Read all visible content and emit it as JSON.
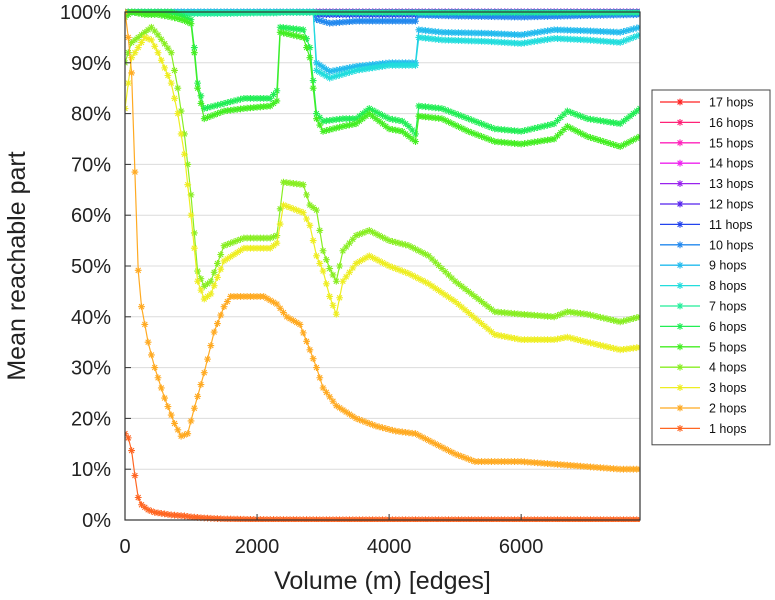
{
  "chart_data": {
    "type": "line",
    "title": "",
    "xlabel": "Volume (m) [edges]",
    "ylabel": "Mean reachable part",
    "xlim": [
      0,
      7800
    ],
    "ylim": [
      0,
      100
    ],
    "x_ticks": [
      0,
      2000,
      4000,
      6000
    ],
    "x_tick_labels": [
      "0",
      "2000",
      "4000",
      "6000"
    ],
    "y_ticks": [
      0,
      10,
      20,
      30,
      40,
      50,
      60,
      70,
      80,
      90,
      100
    ],
    "y_tick_labels": [
      "0%",
      "10%",
      "20%",
      "30%",
      "40%",
      "50%",
      "60%",
      "70%",
      "80%",
      "90%",
      "100%"
    ],
    "grid": "horizontal",
    "legend_position": "right",
    "series": [
      {
        "name": "17 hops",
        "color": "#ff2222",
        "x": [
          0,
          2000,
          4000,
          7800
        ],
        "values": [
          100,
          100,
          100,
          100
        ]
      },
      {
        "name": "16 hops",
        "color": "#ff2277",
        "x": [
          0,
          2000,
          4000,
          7800
        ],
        "values": [
          100,
          100,
          100,
          100
        ]
      },
      {
        "name": "15 hops",
        "color": "#ff22bb",
        "x": [
          0,
          2000,
          4000,
          7800
        ],
        "values": [
          100,
          100,
          100,
          100
        ]
      },
      {
        "name": "14 hops",
        "color": "#ee22ee",
        "x": [
          0,
          2000,
          4000,
          7800
        ],
        "values": [
          100,
          100,
          100,
          100
        ]
      },
      {
        "name": "13 hops",
        "color": "#9922ee",
        "x": [
          0,
          2850,
          2900,
          4400,
          5000,
          6000,
          7000,
          7800
        ],
        "values": [
          100,
          100,
          100,
          100,
          100,
          100,
          100,
          100
        ]
      },
      {
        "name": "12 hops",
        "color": "#5522ee",
        "x": [
          0,
          2850,
          2900,
          4400,
          5000,
          6000,
          7000,
          7800
        ],
        "values": [
          100,
          100,
          100,
          100,
          100,
          100,
          100,
          100
        ]
      },
      {
        "name": "11 hops",
        "color": "#2244ee",
        "x": [
          0,
          2850,
          2900,
          4400,
          5000,
          6000,
          7000,
          7800
        ],
        "values": [
          100,
          100,
          99.5,
          99.5,
          99.8,
          99.8,
          99.8,
          99.8
        ]
      },
      {
        "name": "10 hops",
        "color": "#2288ee",
        "x": [
          0,
          2850,
          2900,
          3100,
          3500,
          4400,
          4450,
          5000,
          6000,
          7000,
          7800
        ],
        "values": [
          100,
          100,
          98.5,
          97.8,
          98.2,
          98.2,
          99.4,
          99.2,
          99.0,
          99.3,
          99.5
        ]
      },
      {
        "name": "9 hops",
        "color": "#22bbee",
        "x": [
          0,
          2850,
          2900,
          3100,
          3500,
          4000,
          4400,
          4450,
          4800,
          5500,
          6000,
          6500,
          7000,
          7500,
          7800
        ],
        "values": [
          100,
          100,
          90,
          88.3,
          89.3,
          90,
          90,
          96.5,
          96,
          95.8,
          95.5,
          96.5,
          96.3,
          96,
          97
        ]
      },
      {
        "name": "8 hops",
        "color": "#22dddd",
        "x": [
          0,
          2850,
          2900,
          3100,
          3500,
          4000,
          4400,
          4450,
          4800,
          5500,
          6000,
          6500,
          7000,
          7500,
          7800
        ],
        "values": [
          100,
          100,
          88.5,
          87,
          88.5,
          89.5,
          89.5,
          95,
          94.5,
          94.2,
          93.8,
          94.8,
          94.5,
          94,
          95.5
        ]
      },
      {
        "name": "7 hops",
        "color": "#22ee99",
        "x": [
          0,
          100,
          300,
          500,
          700,
          800,
          900,
          1000,
          1500,
          2000,
          2300,
          2350,
          2700,
          2800,
          2900,
          4300,
          4400,
          4500,
          7800
        ],
        "values": [
          100,
          100,
          100,
          100,
          100,
          99.7,
          99.7,
          99.7,
          99.7,
          99.8,
          99.8,
          99.9,
          99.9,
          99.9,
          99.9,
          99.9,
          99.9,
          99.9,
          99.9
        ]
      },
      {
        "name": "6 hops",
        "color": "#22ee55",
        "x": [
          0,
          100,
          300,
          500,
          700,
          800,
          900,
          1000,
          1050,
          1100,
          1200,
          1500,
          1800,
          2200,
          2300,
          2350,
          2700,
          2800,
          2900,
          3000,
          3300,
          3500,
          3700,
          4000,
          4200,
          4300,
          4400,
          4450,
          4800,
          5200,
          5600,
          6000,
          6500,
          6700,
          7000,
          7500,
          7800
        ],
        "values": [
          100,
          100,
          100,
          100,
          100,
          99.5,
          99,
          98.5,
          93,
          86,
          81,
          82,
          83,
          83,
          84.5,
          97,
          96.5,
          93,
          80,
          78.5,
          79,
          79,
          81,
          79,
          78.5,
          77.5,
          76,
          81.5,
          81,
          79,
          77,
          76.5,
          78,
          80.5,
          79,
          78,
          81
        ]
      },
      {
        "name": "5 hops",
        "color": "#44ee22",
        "x": [
          0,
          100,
          300,
          400,
          500,
          700,
          800,
          900,
          1000,
          1050,
          1100,
          1200,
          1500,
          1800,
          2200,
          2300,
          2350,
          2700,
          2800,
          2900,
          3000,
          3300,
          3500,
          3700,
          4000,
          4200,
          4300,
          4400,
          4450,
          4800,
          5200,
          5600,
          6000,
          6500,
          6700,
          7000,
          7500,
          7800
        ],
        "values": [
          99,
          100,
          99.5,
          99.5,
          99.5,
          99,
          98.7,
          98.3,
          97.7,
          92,
          85,
          79,
          80.5,
          81,
          81.5,
          82.5,
          96,
          95,
          91,
          79,
          76.5,
          77.5,
          78,
          80,
          77,
          76.5,
          75.5,
          74.5,
          79.5,
          79,
          76.5,
          74.5,
          74,
          75,
          77.5,
          75.5,
          73.5,
          75.5
        ]
      },
      {
        "name": "4 hops",
        "color": "#88ee22",
        "x": [
          0,
          100,
          300,
          400,
          500,
          700,
          800,
          900,
          1000,
          1100,
          1200,
          1300,
          1500,
          1800,
          2200,
          2300,
          2400,
          2700,
          2800,
          2900,
          3000,
          3100,
          3200,
          3300,
          3500,
          3700,
          4000,
          4300,
          4600,
          5000,
          5600,
          6000,
          6500,
          6700,
          7000,
          7500,
          7800
        ],
        "values": [
          90,
          94,
          96,
          97,
          95.5,
          92,
          85,
          76,
          64,
          49,
          46,
          47,
          54,
          55.5,
          55.5,
          56,
          66.5,
          66,
          62,
          61,
          53,
          49.5,
          47,
          53,
          56,
          57,
          55,
          54,
          52,
          47,
          41,
          40.5,
          40,
          41,
          40.5,
          39,
          40
        ]
      },
      {
        "name": "3 hops",
        "color": "#eeee22",
        "x": [
          0,
          100,
          300,
          400,
          500,
          700,
          800,
          900,
          1000,
          1100,
          1200,
          1300,
          1500,
          1800,
          2200,
          2300,
          2400,
          2700,
          2800,
          2900,
          3000,
          3100,
          3200,
          3300,
          3500,
          3700,
          4000,
          4300,
          4600,
          5000,
          5600,
          6000,
          6500,
          6700,
          7000,
          7500,
          7800
        ],
        "values": [
          81,
          91,
          95,
          94.5,
          92,
          86,
          80,
          72,
          60,
          47,
          43.5,
          44.5,
          51,
          53.5,
          53.5,
          54.5,
          62,
          60.5,
          58,
          52,
          49,
          44,
          40.5,
          47,
          50.5,
          52,
          50,
          48.5,
          46.5,
          43,
          36.5,
          35.5,
          35.5,
          36,
          35,
          33.5,
          34
        ]
      },
      {
        "name": "2 hops",
        "color": "#ffaa22",
        "x": [
          0,
          60,
          120,
          180,
          250,
          350,
          450,
          600,
          750,
          850,
          950,
          1050,
          1200,
          1350,
          1500,
          1600,
          1800,
          2100,
          2300,
          2450,
          2650,
          2800,
          2900,
          3000,
          3200,
          3500,
          3800,
          4100,
          4400,
          4700,
          5000,
          5300,
          5600,
          6000,
          6500,
          7000,
          7500,
          7800
        ],
        "values": [
          100,
          94,
          85,
          52,
          42,
          35,
          30,
          24,
          19,
          16.5,
          17,
          22,
          29,
          37,
          42,
          44,
          44,
          44,
          42.5,
          40,
          38.5,
          33.5,
          30,
          26,
          22.5,
          20,
          18.5,
          17.5,
          17,
          15,
          13,
          11.5,
          11.5,
          11.5,
          11,
          10.5,
          10,
          10
        ]
      },
      {
        "name": "1 hops",
        "color": "#ff6622",
        "x": [
          0,
          60,
          120,
          180,
          250,
          350,
          450,
          600,
          700,
          800,
          900,
          1000,
          1200,
          1500,
          2000,
          3000,
          4000,
          5000,
          6000,
          7000,
          7800
        ],
        "values": [
          17,
          16,
          12.5,
          5,
          3,
          2,
          1.5,
          1.2,
          1,
          0.9,
          0.8,
          0.6,
          0.4,
          0.2,
          0.1,
          0.05,
          0.05,
          0.05,
          0.05,
          0.05,
          0.05
        ]
      }
    ]
  }
}
